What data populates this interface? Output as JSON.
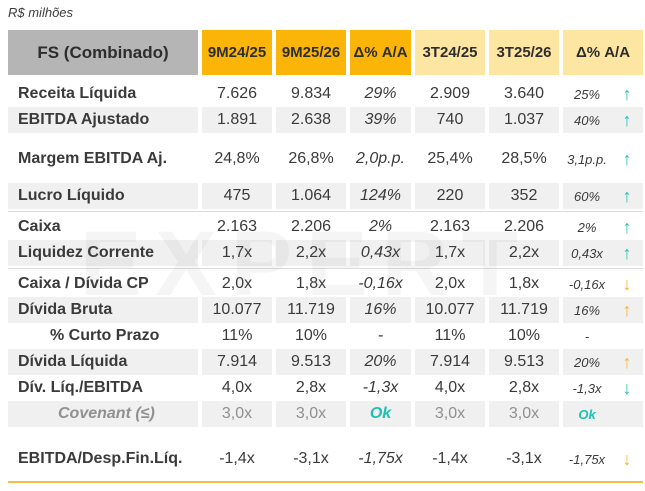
{
  "unit_label": "R$ milhões",
  "watermark": "EXPERT",
  "colors": {
    "header_gray": "#b5b5b5",
    "header_orange": "#fbb508",
    "header_light_yellow": "#fde5a2",
    "row_shade": "#f0f0f0",
    "trend_teal": "#1ec1b2",
    "trend_orange": "#fbb034",
    "divider": "#dcdcdc",
    "bottom_accent": "#f8ba41"
  },
  "chart_data": {
    "type": "table",
    "title": "FS (Combinado)",
    "unit": "R$ milhões",
    "columns": [
      "9M24/25",
      "9M25/26",
      "Δ% A/A",
      "3T24/25",
      "3T25/26",
      "Δ% A/A"
    ],
    "rows": [
      {
        "label": "Receita Líquida",
        "values": [
          "7.626",
          "9.834",
          "29%",
          "2.909",
          "3.640",
          "25%"
        ],
        "trend": "up",
        "trend_color": "teal",
        "shaded": false,
        "gap_before": 6
      },
      {
        "label": "EBITDA Ajustado",
        "values": [
          "1.891",
          "2.638",
          "39%",
          "740",
          "1.037",
          "40%"
        ],
        "trend": "up",
        "trend_color": "teal",
        "shaded": true
      },
      {
        "label": "Margem EBITDA Aj.",
        "values": [
          "24,8%",
          "26,8%",
          "2,0p.p.",
          "25,4%",
          "28,5%",
          "3,1p.p."
        ],
        "trend": "up",
        "trend_color": "teal",
        "shaded": false,
        "gap_before": 13
      },
      {
        "label": "Lucro Líquido",
        "values": [
          "475",
          "1.064",
          "124%",
          "220",
          "352",
          "60%"
        ],
        "trend": "up",
        "trend_color": "teal",
        "shaded": true,
        "gap_before": 11
      },
      {
        "label": "Caixa",
        "values": [
          "2.163",
          "2.206",
          "2%",
          "2.163",
          "2.206",
          "2%"
        ],
        "trend": "up",
        "trend_color": "teal",
        "shaded": false,
        "divider_before": true
      },
      {
        "label": "Liquidez Corrente",
        "values": [
          "1,7x",
          "2,2x",
          "0,43x",
          "1,7x",
          "2,2x",
          "0,43x"
        ],
        "trend": "up",
        "trend_color": "teal",
        "shaded": true
      },
      {
        "label": "Caixa / Dívida CP",
        "values": [
          "2,0x",
          "1,8x",
          "-0,16x",
          "2,0x",
          "1,8x",
          "-0,16x"
        ],
        "trend": "down",
        "trend_color": "orange",
        "shaded": false,
        "divider_before": true
      },
      {
        "label": "Dívida Bruta",
        "values": [
          "10.077",
          "11.719",
          "16%",
          "10.077",
          "11.719",
          "16%"
        ],
        "trend": "up",
        "trend_color": "orange",
        "shaded": true
      },
      {
        "label": "% Curto Prazo",
        "values": [
          "11%",
          "10%",
          "-",
          "11%",
          "10%",
          "-"
        ],
        "trend": null,
        "trend_color": null,
        "shaded": false,
        "indent": true
      },
      {
        "label": "Dívida Líquida",
        "values": [
          "7.914",
          "9.513",
          "20%",
          "7.914",
          "9.513",
          "20%"
        ],
        "trend": "up",
        "trend_color": "orange",
        "shaded": true
      },
      {
        "label": "Dív. Líq./EBITDA",
        "values": [
          "4,0x",
          "2,8x",
          "-1,3x",
          "4,0x",
          "2,8x",
          "-1,3x"
        ],
        "trend": "down",
        "trend_color": "teal",
        "shaded": false
      },
      {
        "label": "Covenant (≤)",
        "values": [
          "3,0x",
          "3,0x",
          "Ok",
          "3,0x",
          "3,0x",
          "Ok"
        ],
        "trend": null,
        "trend_color": null,
        "shaded": true,
        "covenant": true
      },
      {
        "label": "EBITDA/Desp.Fin.Líq.",
        "values": [
          "-1,4x",
          "-3,1x",
          "-1,75x",
          "-1,4x",
          "-3,1x",
          "-1,75x"
        ],
        "trend": "down",
        "trend_color": "orange",
        "shaded": false,
        "gap_before": 19
      }
    ]
  }
}
